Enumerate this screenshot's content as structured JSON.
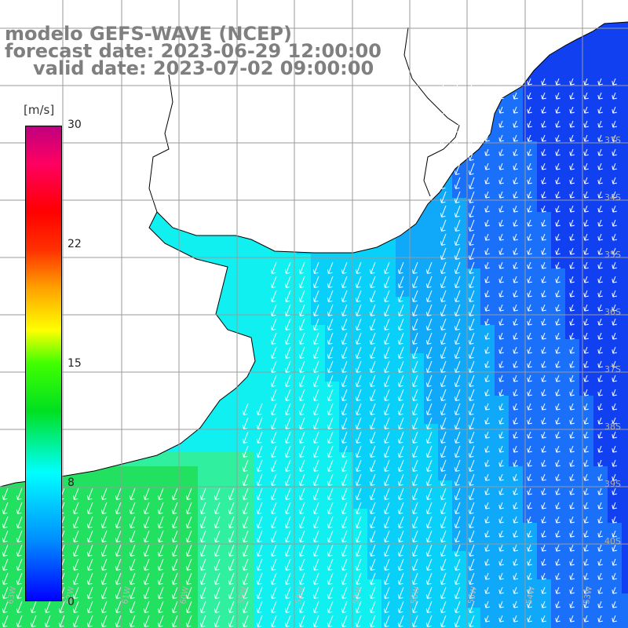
{
  "title": {
    "line1": "modelo GEFS-WAVE (NCEP)",
    "line2": "forecast date: 2023-06-29 12:00:00",
    "line3": "valid date: 2023-07-02 09:00:00"
  },
  "colorbar": {
    "unit": "[m/s]",
    "ticks": [
      "30",
      "22",
      "15",
      "8",
      "0"
    ],
    "tick_values": [
      30,
      22,
      15,
      8,
      0
    ],
    "range": [
      0,
      30
    ],
    "colors": [
      "#0000ff",
      "#0090ff",
      "#00ffff",
      "#00e020",
      "#40ff00",
      "#ffff00",
      "#ffa000",
      "#ff3000",
      "#ff0000",
      "#ff0060",
      "#c00080"
    ]
  },
  "map": {
    "lat_labels": [
      "33S",
      "34S",
      "35S",
      "36S",
      "37S",
      "38S",
      "39S",
      "40S"
    ],
    "lon_labels": [
      "63W",
      "62W",
      "61W",
      "60W",
      "59W",
      "58W",
      "57W",
      "56W",
      "55W",
      "54W",
      "53W"
    ],
    "land_color": "#ffffff",
    "grid_color": "#9a9a9a",
    "arrow_color": "#ffffff",
    "wind_direction": "arrows point southwest toward the coast"
  }
}
